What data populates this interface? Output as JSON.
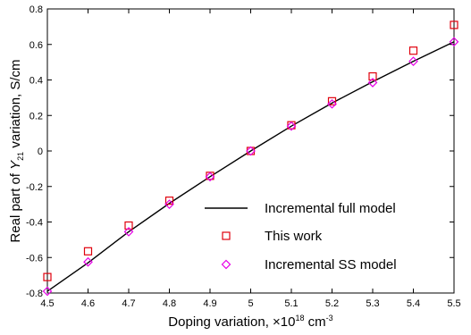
{
  "chart_data": {
    "type": "line",
    "title": "",
    "xlabel": "Doping variation, ×10",
    "xlabel_exp": "18",
    "xlabel_unit": " cm",
    "xlabel_unit_exp": "-3",
    "ylabel_pre": "Real part of ",
    "ylabel_var": "Y",
    "ylabel_sub": "21",
    "ylabel_post": " variation, S/cm",
    "xlim": [
      4.5,
      5.5
    ],
    "ylim": [
      -0.8,
      0.8
    ],
    "xticks": [
      "4.5",
      "4.6",
      "4.7",
      "4.8",
      "4.9",
      "5",
      "5.1",
      "5.2",
      "5.3",
      "5.4",
      "5.5"
    ],
    "yticks": [
      "-0.8",
      "-0.6",
      "-0.4",
      "-0.2",
      "0",
      "0.2",
      "0.4",
      "0.6",
      "0.8"
    ],
    "grid": false,
    "legend_position": "bottom-right",
    "x": [
      4.5,
      4.6,
      4.7,
      4.8,
      4.9,
      5.0,
      5.1,
      5.2,
      5.3,
      5.4,
      5.5
    ],
    "series": [
      {
        "name": "Incremental full model",
        "style": "line",
        "color": "#000000",
        "values": [
          -0.79,
          -0.63,
          -0.455,
          -0.295,
          -0.145,
          0.0,
          0.14,
          0.27,
          0.39,
          0.505,
          0.615
        ]
      },
      {
        "name": "This work",
        "style": "square",
        "color": "#e0000d",
        "values": [
          -0.71,
          -0.565,
          -0.42,
          -0.28,
          -0.14,
          0.0,
          0.145,
          0.28,
          0.42,
          0.565,
          0.71
        ]
      },
      {
        "name": "Incremental SS model",
        "style": "diamond",
        "color": "#e600e6",
        "values": [
          -0.79,
          -0.625,
          -0.455,
          -0.3,
          -0.145,
          0.0,
          0.14,
          0.265,
          0.385,
          0.505,
          0.615
        ]
      }
    ]
  }
}
